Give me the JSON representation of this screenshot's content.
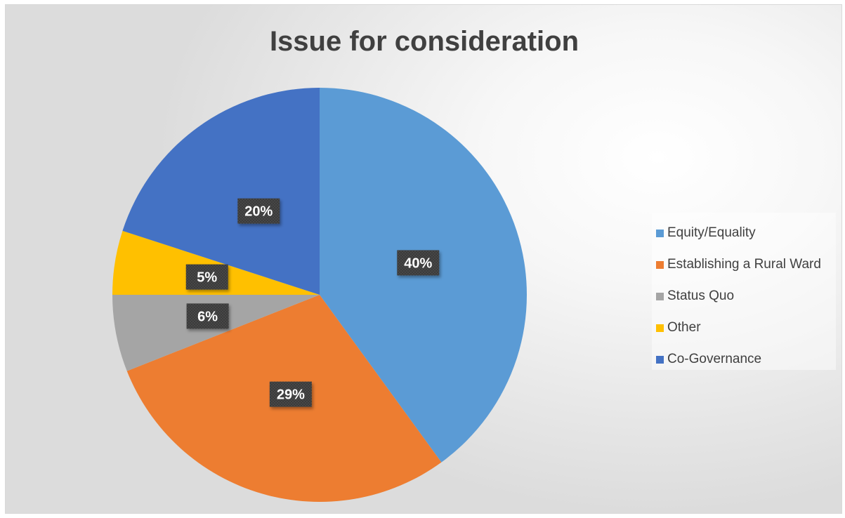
{
  "chart_data": {
    "type": "pie",
    "title": "Issue for consideration",
    "categories": [
      "Equity/Equality",
      "Establishing a Rural Ward",
      "Status Quo",
      "Other",
      "Co-Governance"
    ],
    "values": [
      40,
      29,
      6,
      5,
      20
    ],
    "data_labels": [
      "40%",
      "29%",
      "6%",
      "5%",
      "20%"
    ],
    "colors": [
      "#5b9bd5",
      "#ed7d31",
      "#a5a5a5",
      "#ffc000",
      "#4472c4"
    ],
    "legend_position": "right"
  }
}
